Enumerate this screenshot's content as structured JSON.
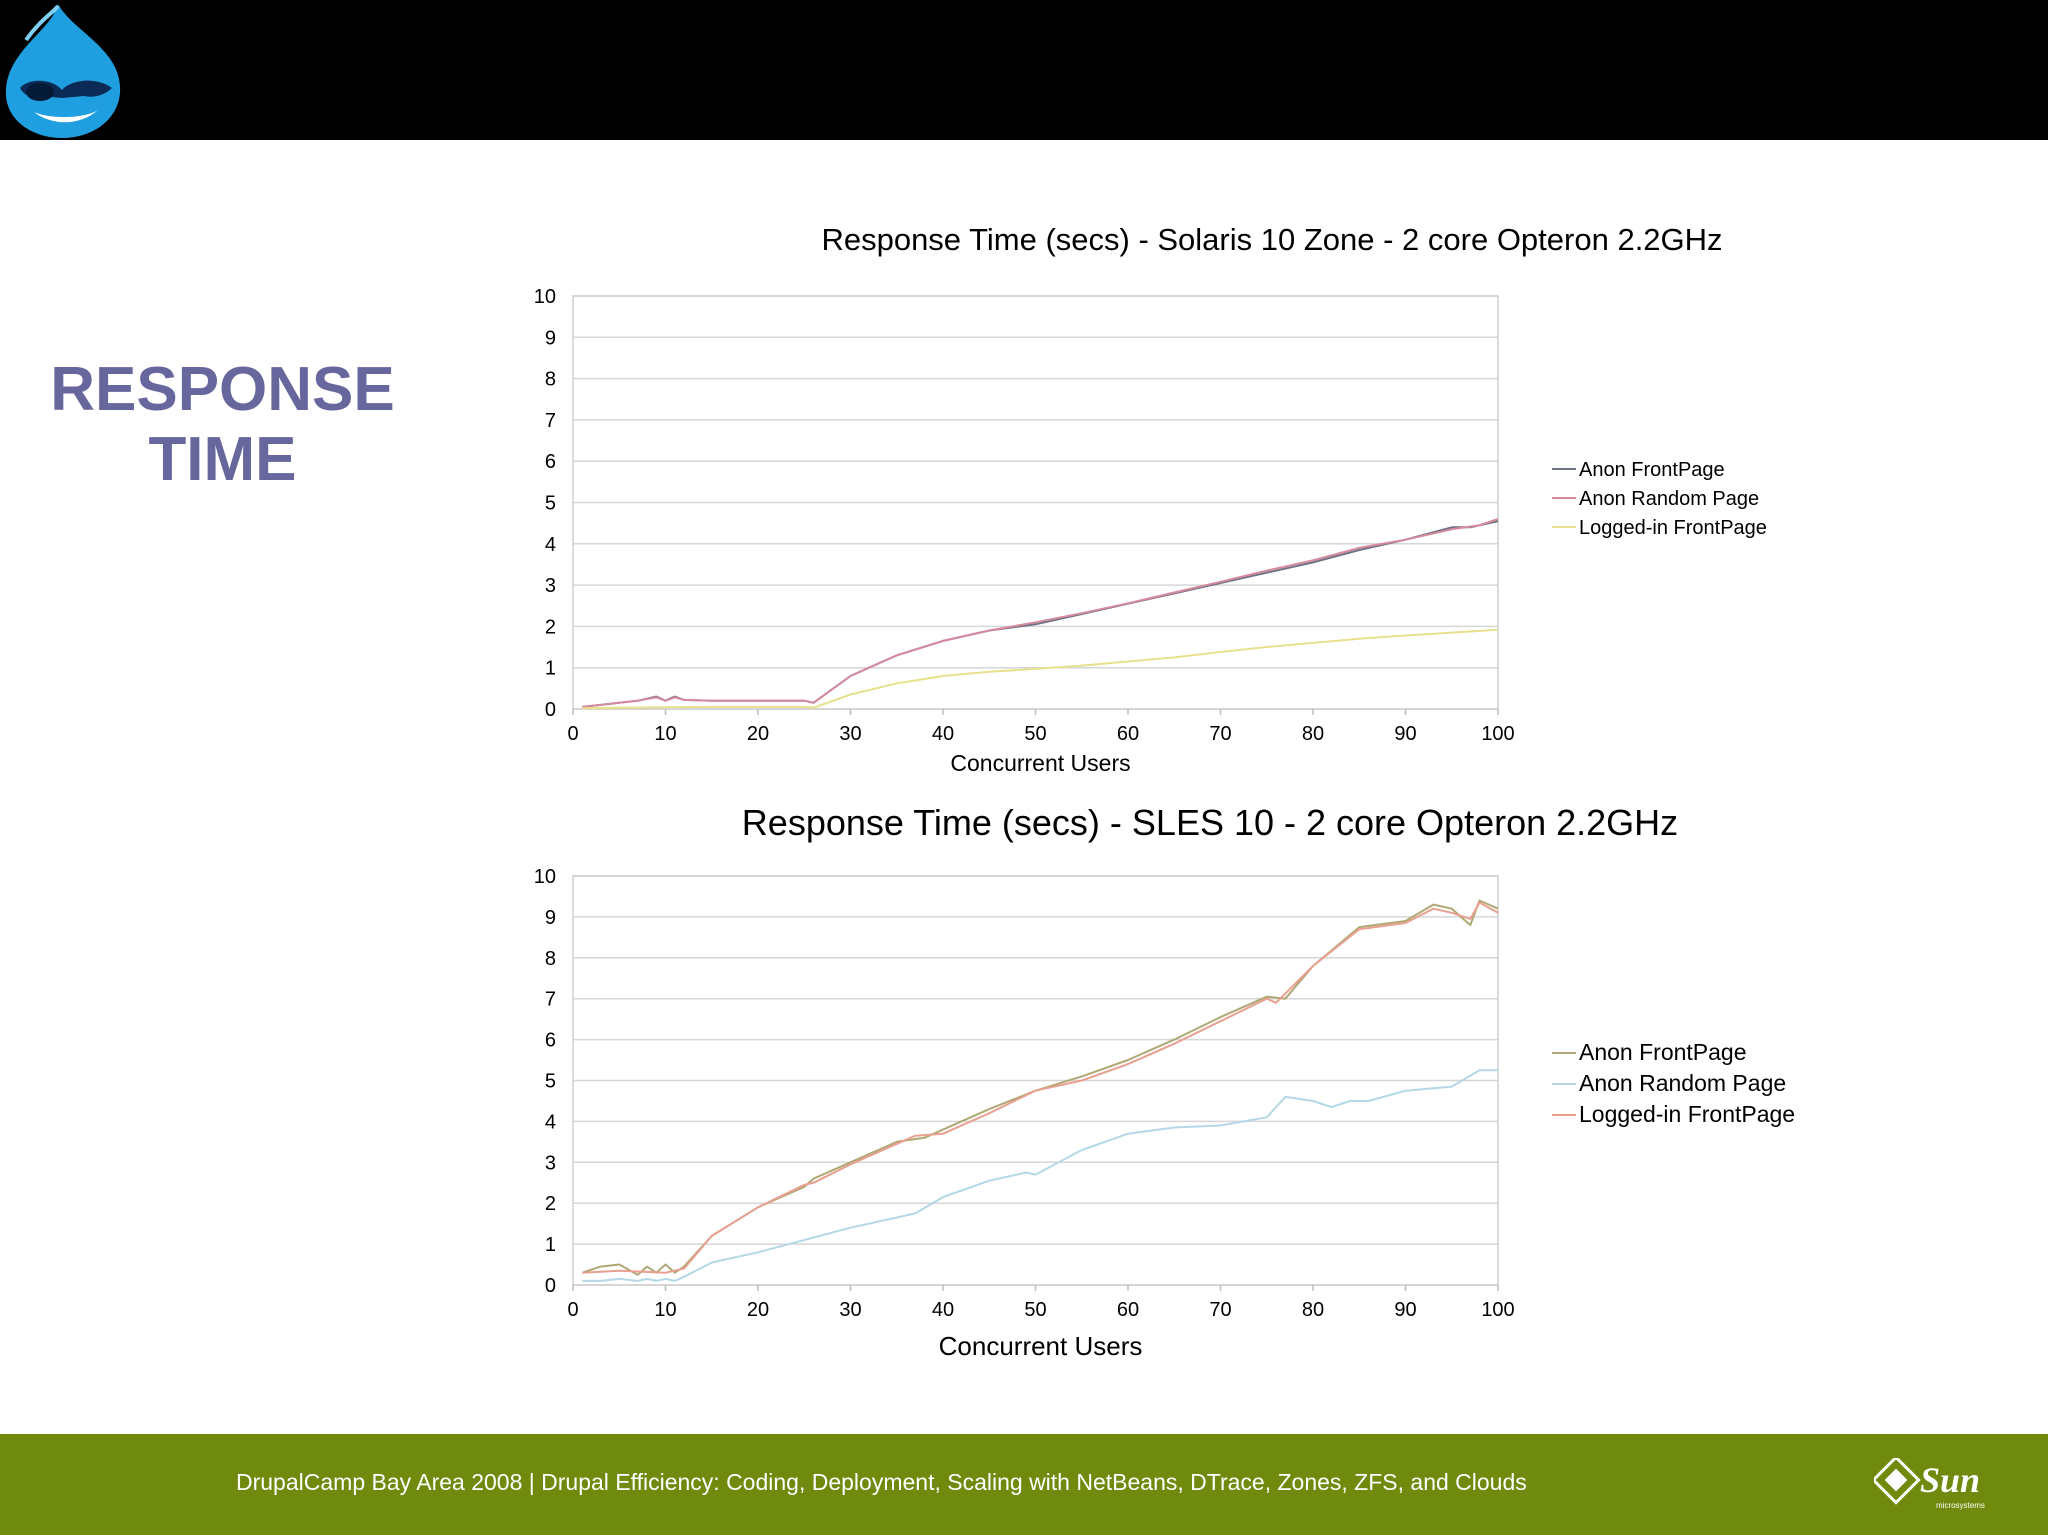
{
  "slide": {
    "title_line1": "RESPONSE",
    "title_line2": "TIME",
    "footer_text": "DrupalCamp Bay Area 2008   |   Drupal Efficiency: Coding, Deployment, Scaling with NetBeans, DTrace, Zones, ZFS, and Clouds",
    "sun_logo_text": "Sun",
    "sun_logo_subtext": "microsystems"
  },
  "chart_data": [
    {
      "type": "line",
      "title": "Response Time (secs) - Solaris 10 Zone - 2 core Opteron 2.2GHz",
      "xlabel": "Concurrent Users",
      "ylabel": "",
      "xlim": [
        0,
        100
      ],
      "ylim": [
        0,
        10
      ],
      "xticks": [
        "0",
        "10",
        "20",
        "30",
        "40",
        "50",
        "60",
        "70",
        "80",
        "90",
        "100"
      ],
      "yticks": [
        "0",
        "1",
        "2",
        "3",
        "4",
        "5",
        "6",
        "7",
        "8",
        "9",
        "10"
      ],
      "grid": true,
      "legend_position": "right",
      "series": [
        {
          "name": "Anon FrontPage",
          "color": "#6e7386",
          "x": [
            1,
            3,
            5,
            7,
            9,
            10,
            11,
            12,
            15,
            20,
            25,
            26,
            30,
            35,
            40,
            45,
            50,
            55,
            60,
            65,
            70,
            75,
            80,
            85,
            90,
            95,
            97,
            100
          ],
          "y": [
            0.05,
            0.1,
            0.15,
            0.2,
            0.3,
            0.2,
            0.3,
            0.22,
            0.2,
            0.2,
            0.2,
            0.15,
            0.8,
            1.3,
            1.65,
            1.9,
            2.05,
            2.3,
            2.55,
            2.8,
            3.05,
            3.3,
            3.55,
            3.85,
            4.1,
            4.4,
            4.4,
            4.55
          ]
        },
        {
          "name": "Anon Random Page",
          "color": "#d68a9c",
          "x": [
            1,
            3,
            5,
            7,
            9,
            10,
            11,
            12,
            15,
            20,
            25,
            26,
            30,
            35,
            40,
            45,
            50,
            55,
            60,
            65,
            70,
            75,
            80,
            85,
            90,
            95,
            98,
            100
          ],
          "y": [
            0.05,
            0.1,
            0.15,
            0.2,
            0.28,
            0.2,
            0.28,
            0.22,
            0.2,
            0.2,
            0.2,
            0.15,
            0.8,
            1.3,
            1.65,
            1.9,
            2.1,
            2.32,
            2.56,
            2.82,
            3.08,
            3.35,
            3.6,
            3.9,
            4.1,
            4.35,
            4.45,
            4.6
          ]
        },
        {
          "name": "Logged-in FrontPage",
          "color": "#e8e08c",
          "x": [
            1,
            5,
            10,
            15,
            20,
            25,
            26,
            30,
            35,
            40,
            45,
            50,
            55,
            60,
            65,
            70,
            75,
            80,
            85,
            90,
            95,
            100
          ],
          "y": [
            0.02,
            0.03,
            0.04,
            0.05,
            0.05,
            0.05,
            0.03,
            0.35,
            0.62,
            0.8,
            0.9,
            0.97,
            1.05,
            1.15,
            1.25,
            1.38,
            1.5,
            1.6,
            1.7,
            1.78,
            1.85,
            1.92
          ]
        }
      ]
    },
    {
      "type": "line",
      "title": "Response Time (secs) - SLES 10 - 2 core Opteron 2.2GHz",
      "xlabel": "Concurrent Users",
      "ylabel": "",
      "xlim": [
        0,
        100
      ],
      "ylim": [
        0,
        10
      ],
      "xticks": [
        "0",
        "10",
        "20",
        "30",
        "40",
        "50",
        "60",
        "70",
        "80",
        "90",
        "100"
      ],
      "yticks": [
        "0",
        "1",
        "2",
        "3",
        "4",
        "5",
        "6",
        "7",
        "8",
        "9",
        "10"
      ],
      "grid": true,
      "legend_position": "right",
      "series": [
        {
          "name": "Anon FrontPage",
          "color": "#b0a874",
          "x": [
            1,
            3,
            5,
            7,
            8,
            9,
            10,
            11,
            12,
            15,
            20,
            25,
            26,
            30,
            35,
            38,
            40,
            45,
            50,
            55,
            60,
            65,
            70,
            75,
            77,
            80,
            85,
            90,
            93,
            95,
            97,
            98,
            100
          ],
          "y": [
            0.3,
            0.45,
            0.5,
            0.25,
            0.45,
            0.3,
            0.5,
            0.3,
            0.45,
            1.2,
            1.9,
            2.4,
            2.6,
            3.0,
            3.5,
            3.6,
            3.8,
            4.3,
            4.75,
            5.1,
            5.5,
            6.0,
            6.55,
            7.05,
            7.0,
            7.8,
            8.75,
            8.9,
            9.3,
            9.2,
            8.8,
            9.4,
            9.2
          ]
        },
        {
          "name": "Anon Random Page",
          "color": "#b4d8e6",
          "x": [
            1,
            3,
            5,
            7,
            8,
            9,
            10,
            11,
            12,
            15,
            20,
            25,
            30,
            35,
            37,
            40,
            45,
            49,
            50,
            55,
            60,
            65,
            70,
            75,
            77,
            80,
            82,
            84,
            86,
            90,
            95,
            98,
            100
          ],
          "y": [
            0.1,
            0.1,
            0.15,
            0.1,
            0.15,
            0.1,
            0.15,
            0.1,
            0.2,
            0.55,
            0.8,
            1.1,
            1.4,
            1.65,
            1.75,
            2.15,
            2.55,
            2.75,
            2.7,
            3.3,
            3.7,
            3.85,
            3.9,
            4.1,
            4.6,
            4.5,
            4.35,
            4.5,
            4.5,
            4.75,
            4.85,
            5.25,
            5.25
          ]
        },
        {
          "name": "Logged-in FrontPage",
          "color": "#e8a090",
          "x": [
            1,
            5,
            10,
            12,
            15,
            20,
            25,
            26,
            30,
            35,
            37,
            40,
            45,
            50,
            55,
            60,
            65,
            70,
            75,
            76,
            80,
            85,
            90,
            93,
            95,
            97,
            98,
            100
          ],
          "y": [
            0.3,
            0.35,
            0.3,
            0.4,
            1.2,
            1.9,
            2.45,
            2.5,
            2.95,
            3.45,
            3.65,
            3.7,
            4.2,
            4.75,
            5.0,
            5.4,
            5.9,
            6.45,
            7.0,
            6.9,
            7.8,
            8.7,
            8.85,
            9.2,
            9.1,
            8.95,
            9.35,
            9.1
          ]
        }
      ]
    }
  ]
}
